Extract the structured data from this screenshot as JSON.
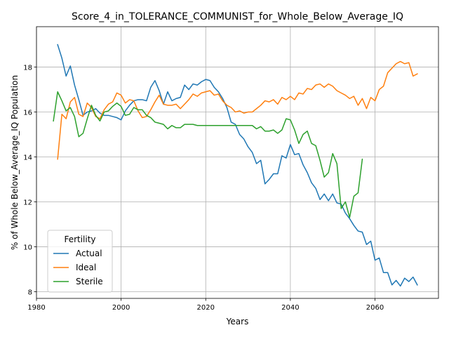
{
  "chart_data": {
    "type": "line",
    "title": "Score_4_in_TOLERANCE_COMMUNIST_for_Whole_Below_Average_IQ",
    "xlabel": "Years",
    "ylabel": "% of Whole Below_Average_IQ Population",
    "xlim": [
      1980,
      2075
    ],
    "ylim": [
      7.7,
      19.8
    ],
    "xticks": [
      1980,
      2000,
      2020,
      2040,
      2060
    ],
    "yticks": [
      8,
      10,
      12,
      14,
      16,
      18
    ],
    "grid": true,
    "legend": {
      "title": "Fertility",
      "placement": "lower-left"
    },
    "series": [
      {
        "name": "Actual",
        "color": "#1f77b4",
        "x": [
          1985,
          1986,
          1987,
          1988,
          1989,
          1990,
          1991,
          1992,
          1993,
          1994,
          1995,
          1996,
          1997,
          1998,
          1999,
          2000,
          2001,
          2002,
          2003,
          2004,
          2005,
          2006,
          2007,
          2008,
          2009,
          2010,
          2011,
          2012,
          2013,
          2014,
          2015,
          2016,
          2017,
          2018,
          2019,
          2020,
          2021,
          2022,
          2023,
          2024,
          2025,
          2026,
          2027,
          2028,
          2029,
          2030,
          2031,
          2032,
          2033,
          2034,
          2035,
          2036,
          2037,
          2038,
          2039,
          2040,
          2041,
          2042,
          2043,
          2044,
          2045,
          2046,
          2047,
          2048,
          2049,
          2050,
          2051,
          2052,
          2053,
          2054,
          2055,
          2056,
          2057,
          2058,
          2059,
          2060,
          2061,
          2062,
          2063,
          2064,
          2065,
          2066,
          2067,
          2068,
          2069,
          2070
        ],
        "values": [
          19.0,
          18.4,
          17.6,
          18.05,
          17.2,
          16.55,
          15.85,
          16.0,
          16.05,
          16.15,
          15.95,
          15.85,
          15.85,
          15.8,
          15.75,
          15.65,
          16.05,
          16.3,
          16.5,
          16.55,
          16.55,
          16.5,
          17.1,
          17.4,
          16.95,
          16.35,
          16.9,
          16.5,
          16.6,
          16.65,
          17.2,
          17.0,
          17.25,
          17.2,
          17.35,
          17.45,
          17.4,
          17.1,
          16.9,
          16.6,
          16.2,
          15.55,
          15.45,
          15.0,
          14.8,
          14.45,
          14.2,
          13.7,
          13.85,
          12.8,
          13.0,
          13.25,
          13.25,
          14.05,
          13.95,
          14.55,
          14.1,
          14.15,
          13.65,
          13.3,
          12.85,
          12.6,
          12.1,
          12.35,
          12.05,
          12.35,
          11.95,
          11.9,
          11.5,
          11.25,
          10.95,
          10.7,
          10.65,
          10.1,
          10.25,
          9.4,
          9.5,
          8.85,
          8.85,
          8.3,
          8.5,
          8.25,
          8.6,
          8.45,
          8.65,
          8.3
        ]
      },
      {
        "name": "Ideal",
        "color": "#ff7f0e",
        "x": [
          1985,
          1986,
          1987,
          1988,
          1989,
          1990,
          1991,
          1992,
          1993,
          1994,
          1995,
          1996,
          1997,
          1998,
          1999,
          2000,
          2001,
          2002,
          2003,
          2004,
          2005,
          2006,
          2007,
          2008,
          2009,
          2010,
          2011,
          2012,
          2013,
          2014,
          2015,
          2016,
          2017,
          2018,
          2019,
          2020,
          2021,
          2022,
          2023,
          2024,
          2025,
          2026,
          2027,
          2028,
          2029,
          2030,
          2031,
          2032,
          2033,
          2034,
          2035,
          2036,
          2037,
          2038,
          2039,
          2040,
          2041,
          2042,
          2043,
          2044,
          2045,
          2046,
          2047,
          2048,
          2049,
          2050,
          2051,
          2052,
          2053,
          2054,
          2055,
          2056,
          2057,
          2058,
          2059,
          2060,
          2061,
          2062,
          2063,
          2064,
          2065,
          2066,
          2067,
          2068,
          2069,
          2070
        ],
        "values": [
          13.9,
          15.9,
          15.7,
          16.45,
          16.65,
          15.9,
          15.8,
          16.4,
          16.2,
          15.8,
          15.7,
          16.1,
          16.35,
          16.45,
          16.85,
          16.75,
          16.4,
          16.55,
          16.5,
          16.05,
          15.75,
          15.8,
          16.1,
          16.45,
          16.75,
          16.35,
          16.3,
          16.3,
          16.35,
          16.15,
          16.35,
          16.55,
          16.8,
          16.7,
          16.85,
          16.9,
          16.95,
          16.75,
          16.8,
          16.5,
          16.3,
          16.2,
          16.0,
          16.05,
          15.95,
          16.0,
          16.0,
          16.15,
          16.3,
          16.5,
          16.45,
          16.55,
          16.35,
          16.65,
          16.55,
          16.7,
          16.55,
          16.85,
          16.8,
          17.05,
          17.0,
          17.2,
          17.25,
          17.1,
          17.25,
          17.15,
          16.95,
          16.85,
          16.75,
          16.6,
          16.7,
          16.3,
          16.6,
          16.15,
          16.65,
          16.5,
          17.0,
          17.15,
          17.75,
          17.95,
          18.15,
          18.25,
          18.15,
          18.2,
          17.6,
          17.7
        ]
      },
      {
        "name": "Sterile",
        "color": "#2ca02c",
        "x": [
          1984,
          1985,
          1986,
          1987,
          1988,
          1989,
          1990,
          1991,
          1992,
          1993,
          1994,
          1995,
          1996,
          1997,
          1998,
          1999,
          2000,
          2001,
          2002,
          2003,
          2004,
          2005,
          2006,
          2007,
          2008,
          2009,
          2010,
          2011,
          2012,
          2013,
          2014,
          2015,
          2016,
          2017,
          2018,
          2019,
          2020,
          2021,
          2022,
          2023,
          2024,
          2025,
          2026,
          2027,
          2028,
          2029,
          2030,
          2031,
          2032,
          2033,
          2034,
          2035,
          2036,
          2037,
          2038,
          2039,
          2040,
          2041,
          2042,
          2043,
          2044,
          2045,
          2046,
          2047,
          2048,
          2049,
          2050,
          2051,
          2052,
          2053,
          2054,
          2055,
          2056,
          2057
        ],
        "values": [
          15.6,
          16.9,
          16.5,
          16.05,
          16.2,
          15.8,
          14.9,
          15.05,
          15.7,
          16.3,
          15.85,
          15.6,
          16.0,
          16.05,
          16.25,
          16.4,
          16.25,
          15.85,
          15.9,
          16.2,
          16.1,
          16.1,
          15.85,
          15.75,
          15.55,
          15.5,
          15.45,
          15.25,
          15.4,
          15.3,
          15.3,
          15.45,
          15.45,
          15.45,
          15.4,
          15.4,
          15.4,
          15.4,
          15.4,
          15.4,
          15.4,
          15.4,
          15.4,
          15.4,
          15.4,
          15.4,
          15.4,
          15.4,
          15.25,
          15.35,
          15.15,
          15.15,
          15.2,
          15.05,
          15.2,
          15.7,
          15.65,
          15.2,
          14.6,
          15.0,
          15.15,
          14.6,
          14.5,
          13.85,
          13.1,
          13.3,
          14.15,
          13.7,
          11.7,
          12.0,
          11.3,
          12.25,
          12.4,
          13.9
        ]
      }
    ]
  }
}
